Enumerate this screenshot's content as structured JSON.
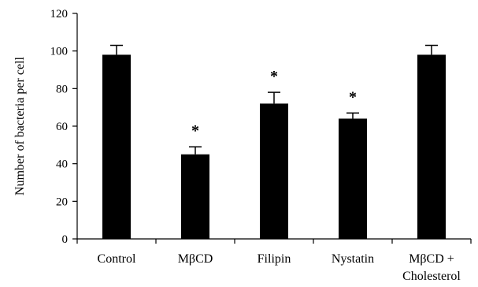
{
  "chart_data": {
    "type": "bar",
    "title": "",
    "xlabel": "",
    "ylabel": "Number of bacteria per cell",
    "ylim": [
      0,
      120
    ],
    "yticks": [
      0,
      20,
      40,
      60,
      80,
      100,
      120
    ],
    "grid": false,
    "categories": [
      [
        "Control"
      ],
      [
        "MβCD"
      ],
      [
        "Filipin"
      ],
      [
        "Nystatin"
      ],
      [
        "MβCD +",
        "Cholesterol"
      ]
    ],
    "values": [
      98,
      45,
      72,
      64,
      98
    ],
    "errors": [
      5,
      4,
      6,
      3,
      5
    ],
    "significance": [
      "",
      "*",
      "*",
      "*",
      ""
    ],
    "bar_color": "#000000"
  }
}
